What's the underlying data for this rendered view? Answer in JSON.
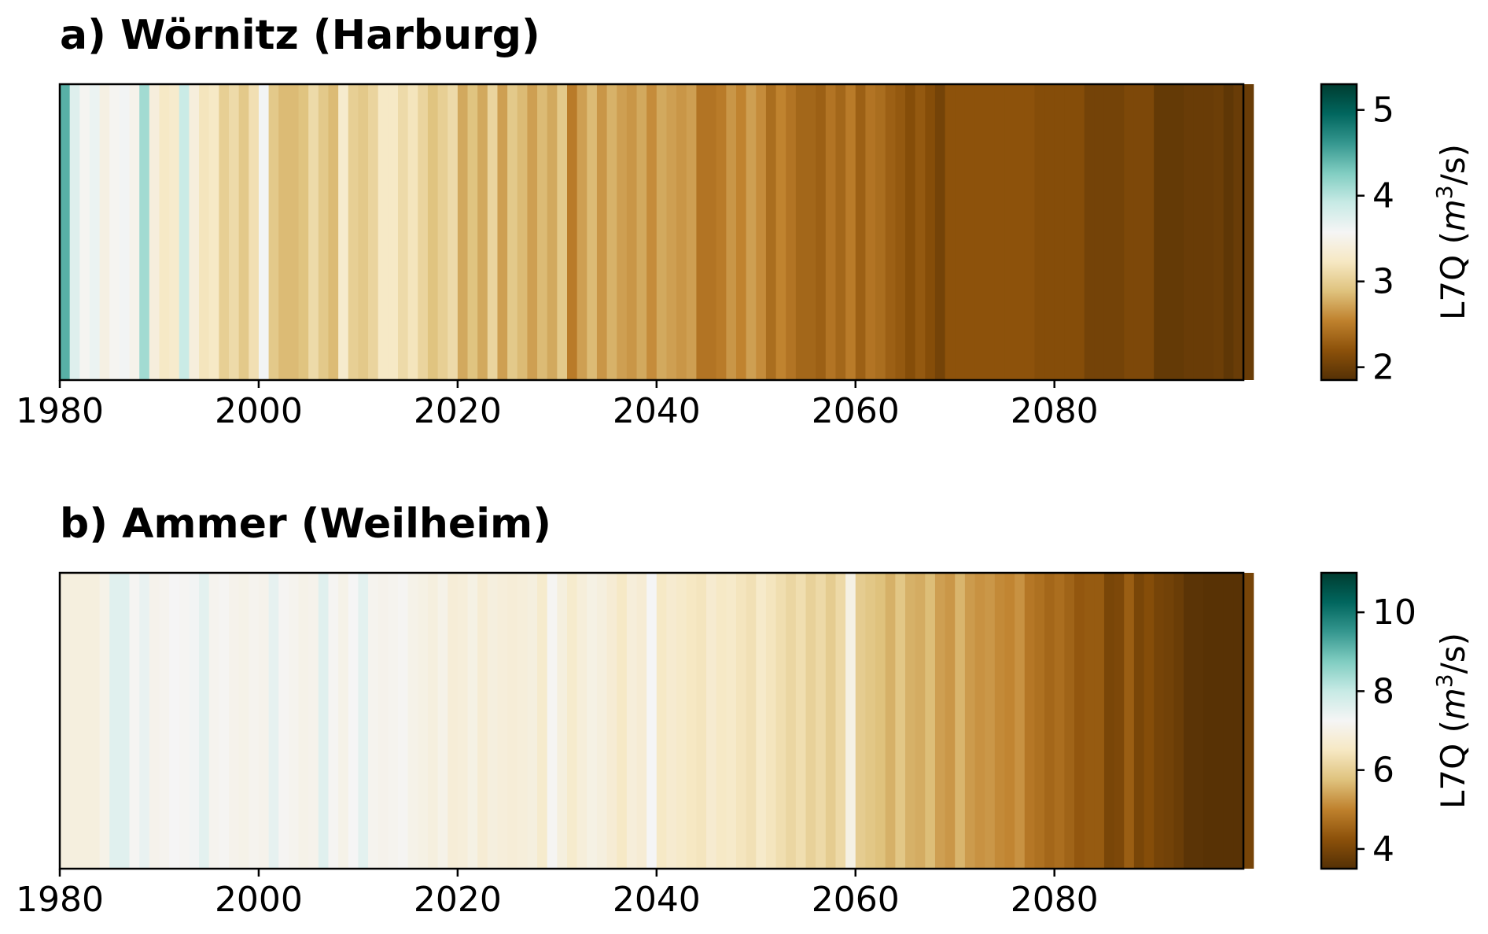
{
  "colormap": {
    "name": "BrBG",
    "stops": [
      "#543005",
      "#8c510a",
      "#bf812d",
      "#dfc27d",
      "#f6e8c3",
      "#f5f5f5",
      "#c7eae5",
      "#80cdc1",
      "#35978f",
      "#01665e",
      "#003c30"
    ]
  },
  "chart_data": [
    {
      "type": "heatmap",
      "title": "a) Wörnitz (Harburg)",
      "xlabel": "",
      "ylabel": "",
      "x_start": 1980,
      "x_end": 2099,
      "xlim": [
        1980,
        2099
      ],
      "xticks": [
        1980,
        2000,
        2020,
        2040,
        2060,
        2080
      ],
      "colorbar": {
        "label_main": "L7Q (",
        "label_unit_base": "m",
        "label_unit_sup": "3",
        "label_unit_rest": "/s)",
        "range": [
          1.85,
          5.3
        ],
        "ticks": [
          2,
          3,
          4,
          5
        ]
      },
      "values": [
        4.45,
        3.75,
        3.55,
        3.65,
        3.45,
        3.55,
        3.6,
        3.5,
        4.1,
        3.4,
        3.25,
        3.3,
        3.9,
        3.4,
        3.2,
        3.25,
        3.0,
        3.1,
        2.95,
        3.15,
        3.6,
        2.95,
        2.85,
        2.85,
        2.9,
        3.1,
        2.95,
        2.85,
        3.3,
        3.0,
        2.95,
        3.05,
        3.25,
        3.25,
        3.1,
        3.2,
        3.05,
        2.9,
        3.0,
        3.1,
        2.75,
        2.9,
        2.75,
        3.05,
        2.7,
        2.95,
        2.85,
        2.7,
        2.85,
        2.75,
        2.95,
        2.5,
        2.7,
        2.85,
        2.65,
        2.8,
        2.7,
        2.65,
        2.75,
        2.6,
        2.75,
        2.7,
        2.65,
        2.7,
        2.45,
        2.45,
        2.5,
        2.65,
        2.55,
        2.7,
        2.6,
        2.4,
        2.55,
        2.45,
        2.35,
        2.35,
        2.3,
        2.45,
        2.35,
        2.5,
        2.3,
        2.45,
        2.4,
        2.3,
        2.25,
        2.15,
        2.25,
        2.15,
        2.05,
        2.2,
        2.2,
        2.2,
        2.2,
        2.2,
        2.2,
        2.2,
        2.2,
        2.2,
        2.15,
        2.15,
        2.15,
        2.15,
        2.15,
        2.05,
        2.05,
        2.05,
        2.05,
        2.1,
        2.1,
        2.1,
        1.95,
        1.95,
        1.95,
        1.98,
        1.98,
        1.98,
        2.0,
        1.92,
        1.98,
        1.98
      ]
    },
    {
      "type": "heatmap",
      "title": "b) Ammer (Weilheim)",
      "xlabel": "",
      "ylabel": "",
      "x_start": 1980,
      "x_end": 2099,
      "xlim": [
        1980,
        2099
      ],
      "xticks": [
        1980,
        2000,
        2020,
        2040,
        2060,
        2080
      ],
      "colorbar": {
        "label_main": "L7Q (",
        "label_unit_base": "m",
        "label_unit_sup": "3",
        "label_unit_rest": "/s)",
        "range": [
          3.5,
          11.0
        ],
        "ticks": [
          4,
          6,
          8,
          10
        ]
      },
      "values": [
        6.9,
        6.9,
        6.9,
        6.9,
        7.05,
        7.6,
        7.6,
        7.2,
        7.45,
        7.1,
        7.15,
        7.25,
        7.2,
        7.3,
        7.55,
        7.15,
        7.2,
        7.1,
        7.05,
        7.15,
        7.1,
        7.5,
        7.2,
        7.15,
        7.05,
        7.1,
        7.6,
        7.2,
        7.05,
        7.25,
        7.55,
        7.15,
        7.1,
        7.15,
        7.2,
        7.05,
        7.0,
        6.9,
        7.05,
        6.8,
        6.85,
        7.0,
        6.75,
        6.9,
        6.85,
        6.8,
        6.85,
        6.9,
        6.65,
        7.2,
        6.9,
        6.65,
        6.85,
        7.0,
        6.9,
        6.75,
        6.55,
        6.85,
        6.75,
        7.25,
        6.55,
        6.7,
        6.6,
        6.5,
        6.45,
        6.7,
        6.55,
        6.6,
        6.45,
        6.35,
        6.6,
        6.45,
        6.3,
        6.15,
        6.3,
        6.05,
        6.2,
        5.95,
        6.2,
        7.0,
        5.95,
        5.85,
        5.75,
        5.55,
        5.85,
        5.55,
        5.5,
        5.7,
        5.35,
        5.25,
        5.6,
        5.3,
        5.2,
        5.25,
        5.1,
        5.05,
        5.2,
        4.85,
        4.75,
        4.6,
        4.7,
        4.55,
        4.35,
        4.4,
        4.4,
        4.0,
        4.05,
        4.45,
        4.0,
        4.15,
        3.95,
        3.9,
        3.8,
        3.6,
        3.6,
        3.55,
        3.55,
        3.55,
        3.55,
        3.95
      ]
    }
  ]
}
